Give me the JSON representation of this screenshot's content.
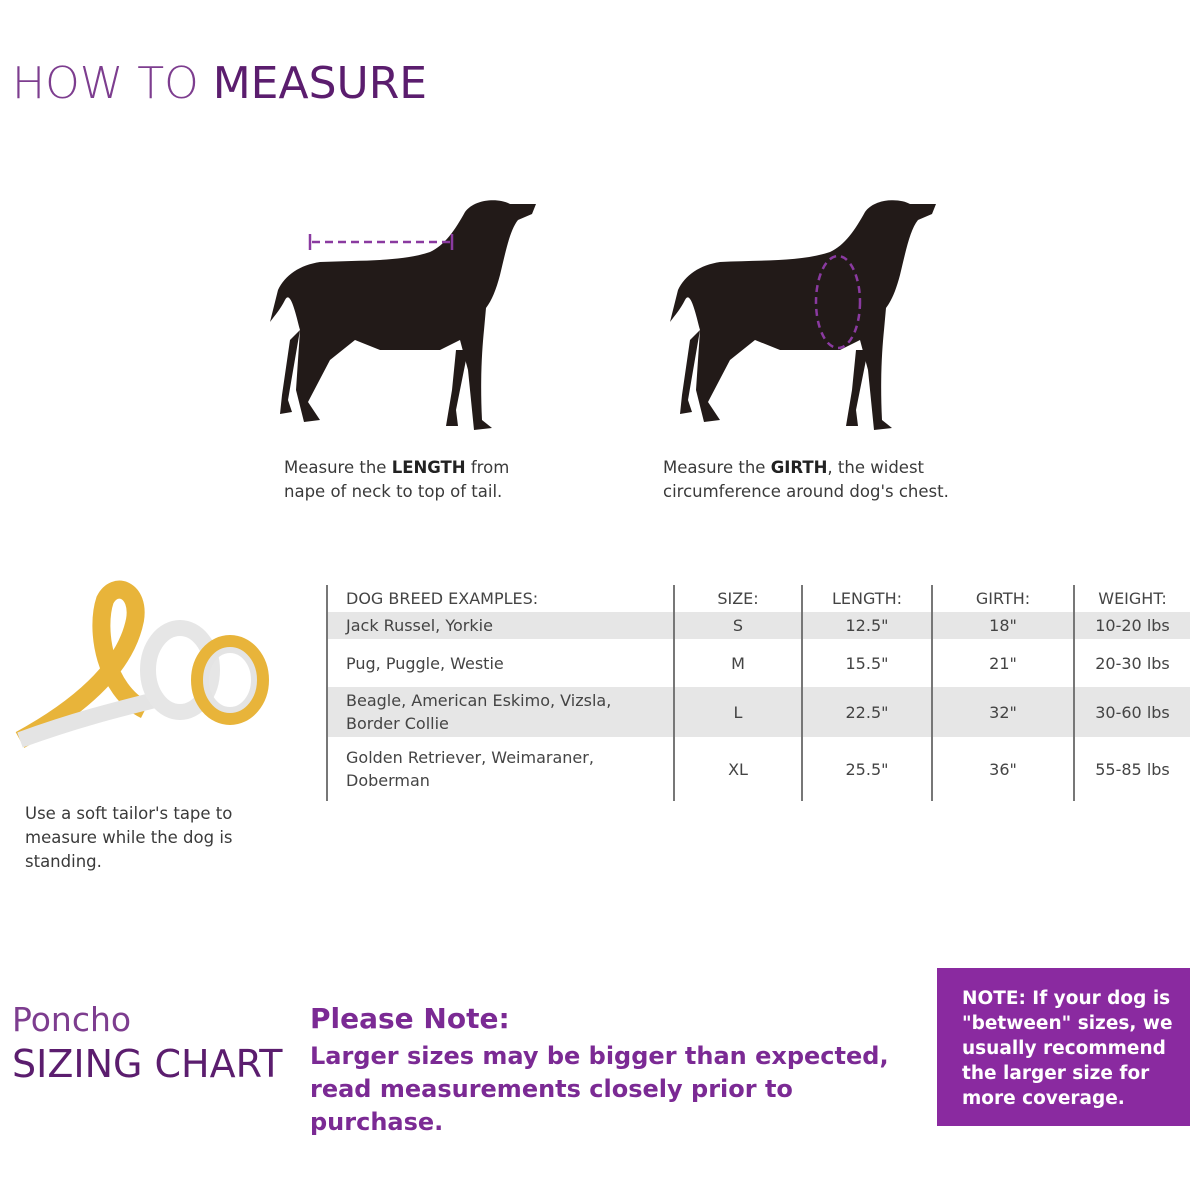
{
  "header": {
    "title_light": "HOW TO ",
    "title_bold": "MEASURE"
  },
  "colors": {
    "accent_dark": "#5b1d6e",
    "accent_light": "#7d3d8f",
    "note_box": "#8a2aa0",
    "table_shade": "#e6e6e6"
  },
  "length_caption": {
    "pre": "Measure the ",
    "bold": "LENGTH",
    "post": " from nape of neck to top of tail."
  },
  "girth_caption": {
    "pre": "Measure the ",
    "bold": "GIRTH",
    "post": ", the widest circumference around dog's chest."
  },
  "tape_caption": "Use a soft tailor's tape to measure while the dog is standing.",
  "table": {
    "headers": [
      "DOG BREED EXAMPLES:",
      "SIZE:",
      "LENGTH:",
      "GIRTH:",
      "WEIGHT:"
    ],
    "rows": [
      {
        "breeds": "Jack Russel, Yorkie",
        "size": "S",
        "length": "12.5\"",
        "girth": "18\"",
        "weight": "10-20 lbs"
      },
      {
        "breeds": "Pug, Puggle, Westie",
        "size": "M",
        "length": "15.5\"",
        "girth": "21\"",
        "weight": "20-30 lbs"
      },
      {
        "breeds": "Beagle, American Eskimo, Vizsla, Border Collie",
        "size": "L",
        "length": "22.5\"",
        "girth": "32\"",
        "weight": "30-60 lbs"
      },
      {
        "breeds": "Golden Retriever, Weimaraner, Doberman",
        "size": "XL",
        "length": "25.5\"",
        "girth": "36\"",
        "weight": "55-85 lbs"
      }
    ]
  },
  "footer": {
    "product": "Poncho",
    "chart_title": "SIZING CHART",
    "please_note_title": "Please Note:",
    "please_note_text": "Larger sizes may be bigger than expected, read measurements closely prior to purchase.",
    "note_box": "NOTE: If your dog is \"between\" sizes, we usually recommend the larger size for more coverage."
  }
}
